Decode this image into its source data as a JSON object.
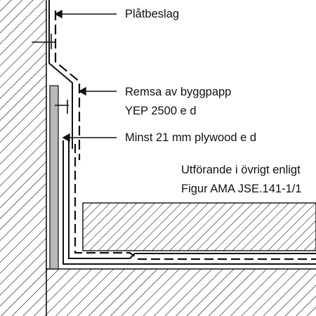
{
  "labels": {
    "flashing": "Plåtbeslag",
    "strip_line1": "Remsa av byggpapp",
    "strip_line2": "YEP 2500 e d",
    "plywood": "Minst 21 mm plywood e d",
    "note_line1": "Utförande i övrigt enligt",
    "note_line2": "Figur AMA JSE.141-1/1"
  },
  "colors": {
    "line": "#111111",
    "plywood_fill": "#b9b9b9",
    "background": "#ffffff"
  }
}
